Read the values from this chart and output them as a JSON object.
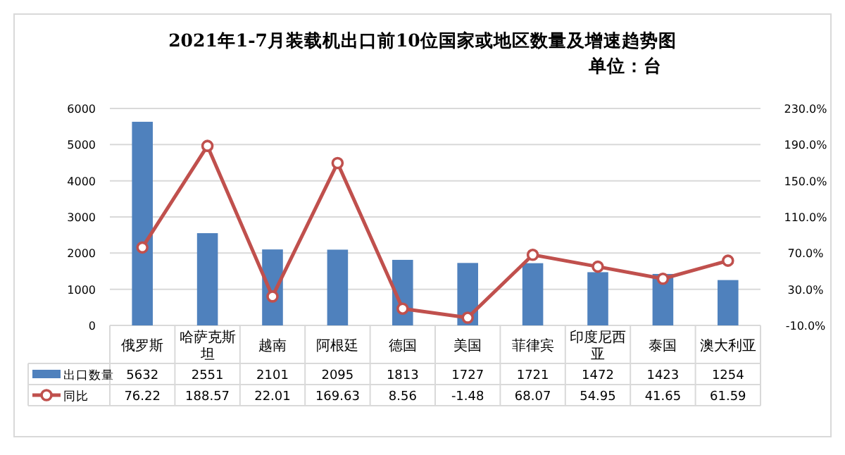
{
  "chart_data": {
    "type": "bar",
    "title": "2021年1-7月装载机出口前10位国家或地区数量及增速趋势图",
    "subtitle": "单位：台",
    "categories": [
      "俄罗斯",
      "哈萨克斯坦",
      "越南",
      "阿根廷",
      "德国",
      "美国",
      "菲律宾",
      "印度尼西亚",
      "泰国",
      "澳大利亚"
    ],
    "series": [
      {
        "name": "出口数量",
        "color": "#4f81bd",
        "values": [
          5632,
          2551,
          2101,
          2095,
          1813,
          1727,
          1721,
          1472,
          1423,
          1254
        ]
      },
      {
        "name": "同比",
        "type": "line",
        "axis": "y2",
        "color": "#c0504d",
        "marker": "circle",
        "values": [
          76.22,
          188.57,
          22.01,
          169.63,
          8.56,
          -1.48,
          68.07,
          54.95,
          41.65,
          61.59
        ]
      }
    ],
    "ylim": [
      0,
      6000
    ],
    "yticks": [
      0,
      1000,
      2000,
      3000,
      4000,
      5000,
      6000
    ],
    "y2lim": [
      -10,
      230
    ],
    "y2ticks": [
      {
        "value": -10,
        "label": "-10.0%"
      },
      {
        "value": 30,
        "label": "30.0%"
      },
      {
        "value": 70,
        "label": "70.0%"
      },
      {
        "value": 110,
        "label": "110.0%"
      },
      {
        "value": 150,
        "label": "150.0%"
      },
      {
        "value": 190,
        "label": "190.0%"
      },
      {
        "value": 230,
        "label": "230.0%"
      }
    ],
    "grid": "y",
    "legend": "bottom",
    "data_labels": true
  }
}
